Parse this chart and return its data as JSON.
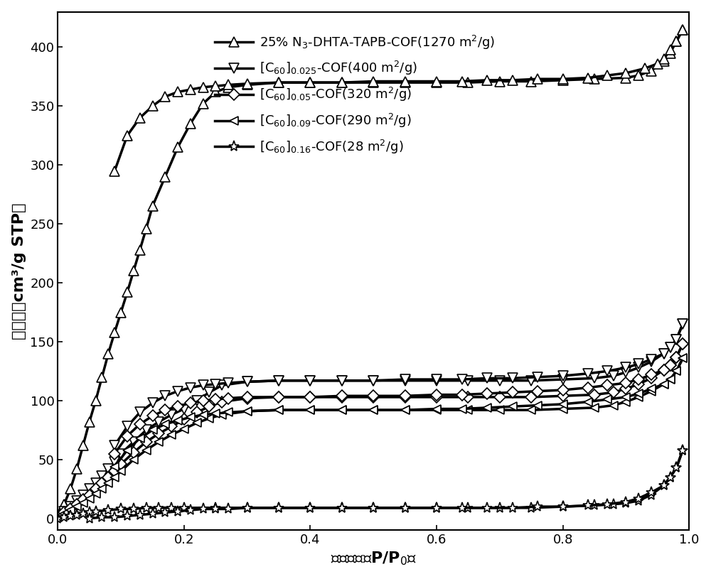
{
  "xlabel": "相对压力（P/P₀）",
  "ylabel": "吸附量（cm³/g STP）",
  "xlim": [
    0.0,
    1.0
  ],
  "ylim": [
    -10,
    430
  ],
  "yticks": [
    0,
    50,
    100,
    150,
    200,
    250,
    300,
    350,
    400
  ],
  "xticks": [
    0.0,
    0.2,
    0.4,
    0.6,
    0.8,
    1.0
  ],
  "legend_labels": [
    "25% N₃-DHTA-TAPB-COF(1270 m²/g)",
    "[C₆₀]₀.₀₂₅-COF(400 m²/g)",
    "[C₆₀]₀.₀₅-COF(320 m²/g)",
    "[C₆₀]₀.₀₉-COF(290 m²/g)",
    "[C₆₀]₀.₁₆-COF(28 m²/g)"
  ],
  "series": [
    {
      "name": "s1_ads",
      "x": [
        0.0,
        0.01,
        0.02,
        0.03,
        0.04,
        0.05,
        0.06,
        0.07,
        0.08,
        0.09,
        0.1,
        0.11,
        0.12,
        0.13,
        0.14,
        0.15,
        0.17,
        0.19,
        0.21,
        0.23,
        0.25,
        0.27,
        0.3,
        0.35,
        0.4,
        0.45,
        0.5,
        0.55,
        0.6,
        0.65,
        0.7,
        0.75,
        0.8,
        0.85,
        0.9,
        0.92,
        0.94,
        0.96,
        0.97,
        0.98,
        0.99
      ],
      "y": [
        4,
        12,
        25,
        42,
        62,
        82,
        100,
        120,
        140,
        158,
        175,
        192,
        210,
        228,
        246,
        265,
        290,
        315,
        335,
        352,
        362,
        366,
        368,
        370,
        370,
        370,
        370,
        370,
        370,
        370,
        371,
        371,
        372,
        373,
        374,
        376,
        380,
        388,
        395,
        405,
        415
      ]
    },
    {
      "name": "s1_des",
      "x": [
        0.99,
        0.98,
        0.97,
        0.96,
        0.95,
        0.93,
        0.9,
        0.87,
        0.84,
        0.8,
        0.76,
        0.72,
        0.68,
        0.64,
        0.6,
        0.55,
        0.5,
        0.45,
        0.4,
        0.35,
        0.3,
        0.27,
        0.25,
        0.23,
        0.21,
        0.19,
        0.17,
        0.15,
        0.13,
        0.11,
        0.09
      ],
      "y": [
        415,
        405,
        398,
        390,
        386,
        382,
        378,
        376,
        374,
        373,
        373,
        372,
        372,
        371,
        371,
        371,
        371,
        370,
        370,
        370,
        369,
        368,
        367,
        366,
        364,
        362,
        358,
        350,
        340,
        325,
        295
      ]
    },
    {
      "name": "s2_ads",
      "x": [
        0.0,
        0.01,
        0.02,
        0.03,
        0.04,
        0.05,
        0.06,
        0.07,
        0.08,
        0.09,
        0.1,
        0.12,
        0.14,
        0.16,
        0.18,
        0.2,
        0.22,
        0.24,
        0.26,
        0.3,
        0.35,
        0.4,
        0.45,
        0.5,
        0.55,
        0.6,
        0.65,
        0.7,
        0.75,
        0.8,
        0.85,
        0.88,
        0.9,
        0.92,
        0.94,
        0.96,
        0.97,
        0.98,
        0.99
      ],
      "y": [
        2,
        6,
        10,
        15,
        20,
        25,
        30,
        36,
        42,
        48,
        55,
        65,
        75,
        82,
        88,
        93,
        100,
        107,
        113,
        116,
        117,
        117,
        117,
        117,
        117,
        117,
        117,
        117,
        117,
        118,
        119,
        121,
        124,
        128,
        133,
        140,
        145,
        152,
        165
      ]
    },
    {
      "name": "s2_des",
      "x": [
        0.99,
        0.98,
        0.97,
        0.96,
        0.94,
        0.92,
        0.9,
        0.87,
        0.84,
        0.8,
        0.76,
        0.72,
        0.68,
        0.64,
        0.6,
        0.55,
        0.5,
        0.45,
        0.4,
        0.35,
        0.3,
        0.27,
        0.25,
        0.23,
        0.21,
        0.19,
        0.17,
        0.15,
        0.13,
        0.11,
        0.09
      ],
      "y": [
        165,
        152,
        145,
        140,
        135,
        131,
        128,
        125,
        123,
        121,
        120,
        119,
        119,
        118,
        118,
        118,
        117,
        117,
        117,
        117,
        116,
        115,
        114,
        113,
        111,
        108,
        104,
        98,
        90,
        78,
        62
      ]
    },
    {
      "name": "s3_ads",
      "x": [
        0.0,
        0.01,
        0.02,
        0.03,
        0.04,
        0.05,
        0.06,
        0.07,
        0.08,
        0.09,
        0.1,
        0.12,
        0.14,
        0.16,
        0.18,
        0.2,
        0.22,
        0.24,
        0.26,
        0.3,
        0.35,
        0.4,
        0.45,
        0.5,
        0.55,
        0.6,
        0.65,
        0.7,
        0.75,
        0.8,
        0.85,
        0.88,
        0.9,
        0.92,
        0.94,
        0.96,
        0.97,
        0.98,
        0.99
      ],
      "y": [
        2,
        5,
        8,
        12,
        16,
        20,
        25,
        30,
        35,
        40,
        46,
        56,
        65,
        72,
        78,
        84,
        90,
        95,
        99,
        102,
        103,
        103,
        103,
        103,
        103,
        103,
        103,
        103,
        103,
        104,
        105,
        107,
        110,
        114,
        119,
        126,
        130,
        137,
        148
      ]
    },
    {
      "name": "s3_des",
      "x": [
        0.99,
        0.98,
        0.97,
        0.96,
        0.94,
        0.92,
        0.9,
        0.87,
        0.84,
        0.8,
        0.76,
        0.72,
        0.68,
        0.64,
        0.6,
        0.55,
        0.5,
        0.45,
        0.4,
        0.35,
        0.3,
        0.27,
        0.25,
        0.23,
        0.21,
        0.19,
        0.17,
        0.15,
        0.13,
        0.11,
        0.09
      ],
      "y": [
        148,
        137,
        130,
        126,
        122,
        118,
        115,
        113,
        111,
        109,
        108,
        107,
        106,
        105,
        105,
        104,
        104,
        104,
        103,
        103,
        103,
        102,
        101,
        100,
        98,
        95,
        92,
        87,
        80,
        70,
        55
      ]
    },
    {
      "name": "s4_ads",
      "x": [
        0.0,
        0.01,
        0.02,
        0.03,
        0.04,
        0.05,
        0.06,
        0.07,
        0.08,
        0.09,
        0.1,
        0.12,
        0.14,
        0.16,
        0.18,
        0.2,
        0.22,
        0.24,
        0.26,
        0.3,
        0.35,
        0.4,
        0.45,
        0.5,
        0.55,
        0.6,
        0.65,
        0.7,
        0.75,
        0.8,
        0.85,
        0.88,
        0.9,
        0.92,
        0.94,
        0.96,
        0.97,
        0.98,
        0.99
      ],
      "y": [
        1,
        4,
        7,
        10,
        13,
        17,
        21,
        25,
        30,
        35,
        40,
        50,
        58,
        65,
        71,
        76,
        81,
        85,
        88,
        91,
        92,
        92,
        92,
        92,
        92,
        92,
        92,
        92,
        92,
        93,
        94,
        96,
        99,
        103,
        108,
        114,
        118,
        125,
        136
      ]
    },
    {
      "name": "s4_des",
      "x": [
        0.99,
        0.98,
        0.97,
        0.96,
        0.94,
        0.92,
        0.9,
        0.87,
        0.84,
        0.8,
        0.76,
        0.72,
        0.68,
        0.64,
        0.6,
        0.55,
        0.5,
        0.45,
        0.4,
        0.35,
        0.3,
        0.27,
        0.25,
        0.23,
        0.21,
        0.19,
        0.17,
        0.15,
        0.13,
        0.11,
        0.09
      ],
      "y": [
        136,
        125,
        118,
        114,
        110,
        106,
        103,
        101,
        99,
        97,
        96,
        95,
        94,
        93,
        93,
        92,
        92,
        92,
        92,
        92,
        91,
        90,
        89,
        88,
        86,
        83,
        80,
        75,
        68,
        58,
        44
      ]
    },
    {
      "name": "s5_ads",
      "x": [
        0.0,
        0.01,
        0.02,
        0.03,
        0.04,
        0.05,
        0.06,
        0.08,
        0.1,
        0.12,
        0.14,
        0.16,
        0.18,
        0.2,
        0.25,
        0.3,
        0.35,
        0.4,
        0.45,
        0.5,
        0.55,
        0.6,
        0.65,
        0.7,
        0.75,
        0.8,
        0.85,
        0.88,
        0.9,
        0.92,
        0.94,
        0.96,
        0.97,
        0.98,
        0.99
      ],
      "y": [
        0,
        1,
        2,
        3,
        4,
        5,
        6,
        7,
        8,
        8,
        9,
        9,
        9,
        9,
        9,
        9,
        9,
        9,
        9,
        9,
        9,
        9,
        9,
        9,
        9,
        10,
        11,
        12,
        13,
        15,
        20,
        28,
        35,
        43,
        58
      ]
    },
    {
      "name": "s5_des",
      "x": [
        0.99,
        0.98,
        0.97,
        0.96,
        0.94,
        0.92,
        0.9,
        0.87,
        0.84,
        0.8,
        0.76,
        0.72,
        0.68,
        0.64,
        0.6,
        0.55,
        0.5,
        0.45,
        0.4,
        0.35,
        0.3,
        0.27,
        0.25,
        0.23,
        0.21,
        0.19,
        0.17,
        0.15,
        0.13,
        0.11,
        0.09,
        0.07,
        0.05
      ],
      "y": [
        58,
        43,
        35,
        28,
        22,
        17,
        14,
        12,
        11,
        10,
        10,
        9,
        9,
        9,
        9,
        9,
        9,
        9,
        9,
        9,
        9,
        8,
        8,
        8,
        7,
        6,
        5,
        4,
        3,
        2,
        1,
        1,
        0
      ]
    }
  ]
}
